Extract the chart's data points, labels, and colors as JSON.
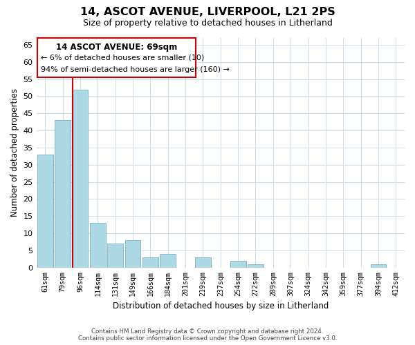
{
  "title": "14, ASCOT AVENUE, LIVERPOOL, L21 2PS",
  "subtitle": "Size of property relative to detached houses in Litherland",
  "xlabel": "Distribution of detached houses by size in Litherland",
  "ylabel": "Number of detached properties",
  "bar_color": "#add8e6",
  "bar_edge_color": "#7ab0c8",
  "annotation_line_color": "#cc0000",
  "categories": [
    "61sqm",
    "79sqm",
    "96sqm",
    "114sqm",
    "131sqm",
    "149sqm",
    "166sqm",
    "184sqm",
    "201sqm",
    "219sqm",
    "237sqm",
    "254sqm",
    "272sqm",
    "289sqm",
    "307sqm",
    "324sqm",
    "342sqm",
    "359sqm",
    "377sqm",
    "394sqm",
    "412sqm"
  ],
  "values": [
    33,
    43,
    52,
    13,
    7,
    8,
    3,
    4,
    0,
    3,
    0,
    2,
    1,
    0,
    0,
    0,
    0,
    0,
    0,
    1,
    0
  ],
  "ylim": [
    0,
    67
  ],
  "yticks": [
    0,
    5,
    10,
    15,
    20,
    25,
    30,
    35,
    40,
    45,
    50,
    55,
    60,
    65
  ],
  "annotation_title": "14 ASCOT AVENUE: 69sqm",
  "annotation_line1": "← 6% of detached houses are smaller (10)",
  "annotation_line2": "94% of semi-detached houses are larger (160) →",
  "footer_line1": "Contains HM Land Registry data © Crown copyright and database right 2024.",
  "footer_line2": "Contains public sector information licensed under the Open Government Licence v3.0.",
  "bg_color": "#ffffff",
  "grid_color": "#ccddee"
}
